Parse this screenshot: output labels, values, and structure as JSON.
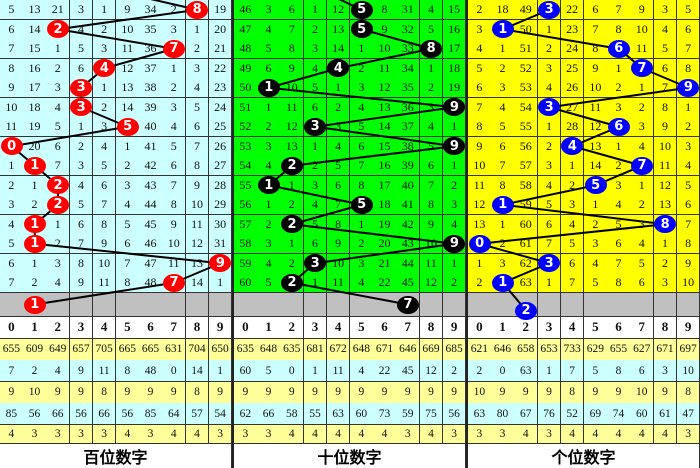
{
  "header_digits": [
    "0",
    "1",
    "2",
    "3",
    "4",
    "5",
    "6",
    "7",
    "8",
    "9"
  ],
  "colors": {
    "grid": "#333333",
    "line": "#000000",
    "gray_row": "#c0c0c0",
    "stat_yellow": "#ffff99",
    "stat_cyan": "#ccffff"
  },
  "panels": [
    {
      "title": "百位数字",
      "bg": "#ccffff",
      "ball_color": "#ff0000",
      "rows": [
        [
          5,
          13,
          21,
          3,
          1,
          9,
          34,
          2,
          8,
          19
        ],
        [
          6,
          14,
          2,
          4,
          2,
          10,
          35,
          3,
          1,
          20
        ],
        [
          7,
          15,
          1,
          5,
          3,
          11,
          36,
          7,
          2,
          21
        ],
        [
          8,
          16,
          2,
          6,
          4,
          12,
          37,
          1,
          3,
          22
        ],
        [
          9,
          17,
          3,
          3,
          1,
          13,
          38,
          2,
          4,
          23
        ],
        [
          10,
          18,
          4,
          3,
          2,
          14,
          39,
          3,
          5,
          24
        ],
        [
          11,
          19,
          5,
          1,
          3,
          5,
          40,
          4,
          6,
          25
        ],
        [
          0,
          20,
          6,
          2,
          4,
          1,
          41,
          5,
          7,
          26
        ],
        [
          1,
          1,
          7,
          3,
          5,
          2,
          42,
          6,
          8,
          27
        ],
        [
          2,
          1,
          2,
          4,
          6,
          3,
          43,
          7,
          9,
          28
        ],
        [
          3,
          2,
          2,
          5,
          7,
          4,
          44,
          8,
          10,
          29
        ],
        [
          4,
          1,
          1,
          6,
          8,
          5,
          45,
          9,
          11,
          30
        ],
        [
          5,
          1,
          2,
          7,
          9,
          6,
          46,
          10,
          12,
          31
        ],
        [
          6,
          1,
          3,
          8,
          10,
          7,
          47,
          11,
          13,
          9
        ],
        [
          7,
          2,
          4,
          9,
          11,
          8,
          48,
          7,
          14,
          1
        ]
      ],
      "hits": [
        8,
        2,
        7,
        4,
        3,
        3,
        5,
        0,
        1,
        2,
        2,
        1,
        1,
        9,
        7
      ],
      "prediction": 1,
      "stats": [
        [
          655,
          609,
          649,
          657,
          705,
          665,
          665,
          631,
          704,
          650
        ],
        [
          7,
          2,
          4,
          9,
          11,
          8,
          48,
          0,
          14,
          1
        ],
        [
          9,
          10,
          9,
          9,
          8,
          9,
          9,
          9,
          8,
          9
        ],
        [
          85,
          56,
          66,
          56,
          66,
          56,
          85,
          64,
          57,
          54
        ],
        [
          4,
          3,
          3,
          3,
          3,
          4,
          3,
          4,
          4,
          3
        ]
      ]
    },
    {
      "title": "十位数字",
      "bg": "#00ff00",
      "ball_color": "#000000",
      "rows": [
        [
          46,
          3,
          6,
          1,
          12,
          5,
          8,
          31,
          4,
          15
        ],
        [
          47,
          4,
          7,
          2,
          13,
          5,
          9,
          32,
          5,
          16
        ],
        [
          48,
          5,
          8,
          3,
          14,
          1,
          10,
          33,
          8,
          17
        ],
        [
          49,
          6,
          9,
          4,
          4,
          2,
          11,
          34,
          1,
          18
        ],
        [
          50,
          1,
          10,
          5,
          1,
          3,
          12,
          35,
          2,
          19
        ],
        [
          51,
          1,
          11,
          6,
          2,
          4,
          13,
          36,
          3,
          9
        ],
        [
          52,
          2,
          12,
          3,
          3,
          5,
          14,
          37,
          4,
          1
        ],
        [
          53,
          3,
          13,
          1,
          4,
          6,
          15,
          38,
          5,
          9
        ],
        [
          54,
          4,
          2,
          2,
          5,
          7,
          16,
          39,
          6,
          1
        ],
        [
          55,
          1,
          1,
          3,
          6,
          8,
          17,
          40,
          7,
          2
        ],
        [
          56,
          1,
          2,
          4,
          7,
          5,
          18,
          41,
          8,
          3
        ],
        [
          57,
          2,
          2,
          5,
          8,
          1,
          19,
          42,
          9,
          4
        ],
        [
          58,
          3,
          1,
          6,
          9,
          2,
          20,
          43,
          10,
          9
        ],
        [
          59,
          4,
          2,
          3,
          10,
          3,
          21,
          44,
          11,
          1
        ],
        [
          60,
          5,
          2,
          1,
          11,
          4,
          22,
          45,
          12,
          2
        ]
      ],
      "hits": [
        5,
        5,
        8,
        4,
        1,
        9,
        3,
        9,
        2,
        1,
        5,
        2,
        9,
        3,
        2
      ],
      "prediction": 7,
      "stats": [
        [
          635,
          648,
          635,
          681,
          672,
          648,
          671,
          646,
          669,
          685
        ],
        [
          60,
          5,
          0,
          1,
          11,
          4,
          22,
          45,
          12,
          2
        ],
        [
          9,
          9,
          9,
          9,
          9,
          9,
          9,
          9,
          9,
          9
        ],
        [
          62,
          66,
          58,
          55,
          63,
          60,
          73,
          59,
          75,
          56
        ],
        [
          3,
          3,
          4,
          4,
          4,
          4,
          4,
          3,
          4,
          3
        ]
      ]
    },
    {
      "title": "个位数字",
      "bg": "#ffff00",
      "ball_color": "#0000ff",
      "rows": [
        [
          2,
          18,
          49,
          3,
          22,
          6,
          7,
          9,
          3,
          5
        ],
        [
          3,
          1,
          50,
          1,
          23,
          7,
          8,
          10,
          4,
          6
        ],
        [
          4,
          1,
          51,
          2,
          24,
          8,
          6,
          11,
          5,
          7
        ],
        [
          5,
          2,
          52,
          3,
          25,
          9,
          1,
          7,
          6,
          8
        ],
        [
          6,
          3,
          53,
          4,
          26,
          10,
          2,
          1,
          7,
          9
        ],
        [
          7,
          4,
          54,
          3,
          27,
          11,
          3,
          2,
          8,
          1
        ],
        [
          8,
          5,
          55,
          1,
          28,
          12,
          6,
          3,
          9,
          2
        ],
        [
          9,
          6,
          56,
          2,
          4,
          13,
          1,
          4,
          10,
          3
        ],
        [
          10,
          7,
          57,
          3,
          1,
          14,
          2,
          7,
          11,
          4
        ],
        [
          11,
          8,
          58,
          4,
          2,
          5,
          3,
          1,
          12,
          5
        ],
        [
          12,
          1,
          59,
          5,
          3,
          1,
          4,
          2,
          13,
          6
        ],
        [
          13,
          1,
          60,
          6,
          4,
          2,
          5,
          3,
          8,
          7
        ],
        [
          0,
          2,
          61,
          7,
          5,
          3,
          6,
          4,
          1,
          8
        ],
        [
          1,
          3,
          62,
          3,
          6,
          4,
          7,
          5,
          2,
          9
        ],
        [
          2,
          1,
          63,
          1,
          7,
          5,
          8,
          6,
          3,
          10
        ]
      ],
      "hits": [
        3,
        1,
        6,
        7,
        9,
        3,
        6,
        4,
        7,
        5,
        1,
        8,
        0,
        3,
        1
      ],
      "prediction": 2,
      "stats": [
        [
          621,
          646,
          658,
          653,
          733,
          629,
          655,
          627,
          671,
          697
        ],
        [
          2,
          0,
          63,
          1,
          7,
          5,
          8,
          6,
          3,
          10
        ],
        [
          10,
          9,
          9,
          9,
          8,
          9,
          9,
          10,
          9,
          8
        ],
        [
          63,
          80,
          67,
          76,
          52,
          69,
          74,
          60,
          61,
          47
        ],
        [
          3,
          3,
          4,
          3,
          4,
          4,
          4,
          4,
          4,
          3
        ]
      ]
    }
  ]
}
